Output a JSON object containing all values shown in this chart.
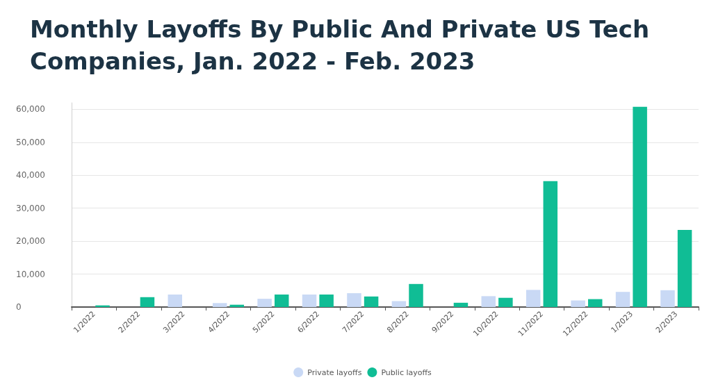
{
  "chart_data": {
    "type": "bar",
    "title": "Monthly Layoffs By Public And Private US Tech Companies, Jan. 2022 - Feb. 2023",
    "categories": [
      "1/2022",
      "2/2022",
      "3/2022",
      "4/2022",
      "5/2022",
      "6/2022",
      "7/2022",
      "8/2022",
      "9/2022",
      "10/2022",
      "11/2022",
      "12/2022",
      "1/2023",
      "2/2023"
    ],
    "series": [
      {
        "name": "Private layoffs",
        "color": "#c9d9f5",
        "values": [
          0,
          0,
          3800,
          1200,
          2500,
          3800,
          4200,
          1800,
          0,
          3300,
          5200,
          2000,
          4600,
          5100
        ]
      },
      {
        "name": "Public layoffs",
        "color": "#10bd95",
        "values": [
          500,
          3000,
          0,
          700,
          3800,
          3800,
          3200,
          7000,
          1300,
          2800,
          38200,
          2400,
          60800,
          23400
        ]
      }
    ],
    "ylim": [
      0,
      62000
    ],
    "yticks": [
      0,
      {
        "value": 10000,
        "label": "10,000"
      },
      {
        "value": 20000,
        "label": "20,000"
      },
      {
        "value": 30000,
        "label": "30,000"
      },
      {
        "value": 40000,
        "label": "40,000"
      },
      {
        "value": 50000,
        "label": "50,000"
      },
      {
        "value": 60000,
        "label": "60,000"
      }
    ],
    "grid": "y",
    "legend": "bottom"
  }
}
